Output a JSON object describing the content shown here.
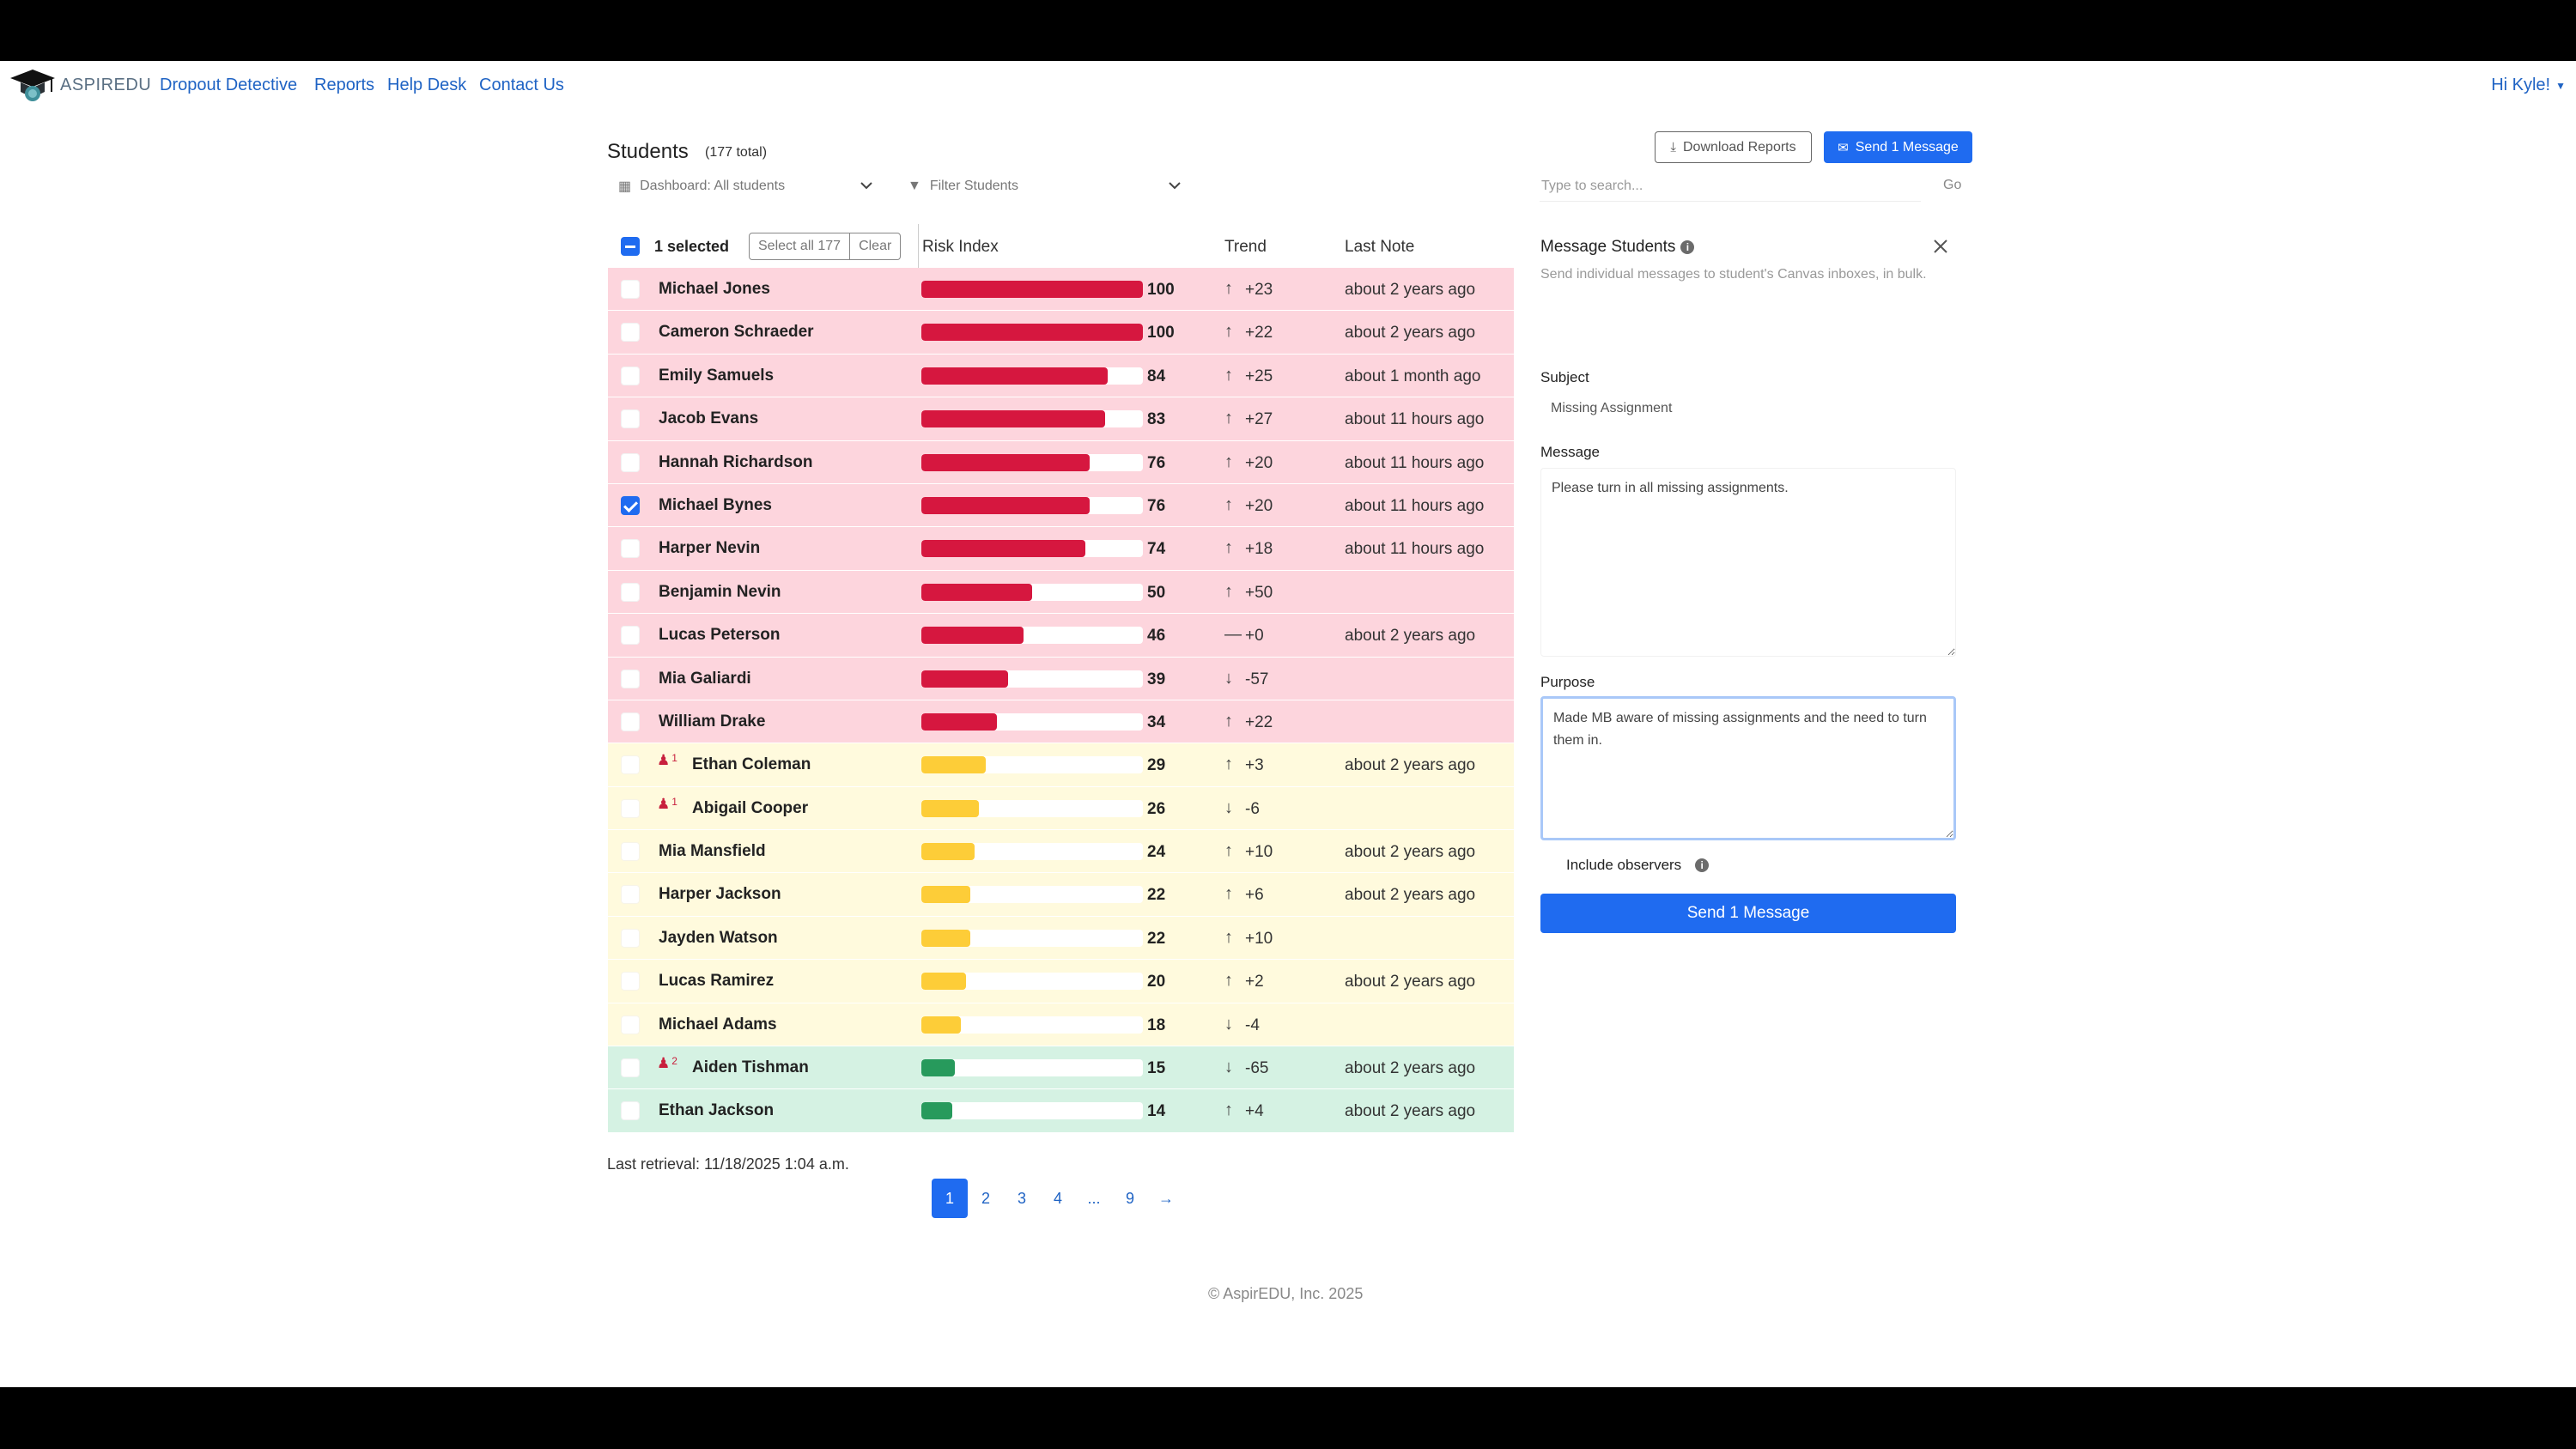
{
  "nav": {
    "brand": "ASPIREDU",
    "links": [
      "Dropout Detective",
      "Reports",
      "Help Desk",
      "Contact Us"
    ],
    "user": "Hi Kyle!"
  },
  "header": {
    "title": "Students",
    "count": "(177 total)",
    "download_label": "Download Reports",
    "send_label": "Send 1 Message"
  },
  "filters": {
    "dashboard": "Dashboard: All students",
    "filter": "Filter Students",
    "search_placeholder": "Type to search...",
    "go": "Go"
  },
  "table": {
    "selected": "1 selected",
    "select_all": "Select all 177",
    "clear": "Clear",
    "columns": [
      "Risk Index",
      "Trend",
      "Last Note"
    ],
    "rows": [
      {
        "name": "Michael Jones",
        "risk": 100,
        "trend": "+23",
        "dir": "up",
        "note": "about 2 years ago",
        "level": "red",
        "checked": false,
        "obs": ""
      },
      {
        "name": "Cameron Schraeder",
        "risk": 100,
        "trend": "+22",
        "dir": "up",
        "note": "about 2 years ago",
        "level": "red",
        "checked": false,
        "obs": ""
      },
      {
        "name": "Emily Samuels",
        "risk": 84,
        "trend": "+25",
        "dir": "up",
        "note": "about 1 month ago",
        "level": "red",
        "checked": false,
        "obs": ""
      },
      {
        "name": "Jacob Evans",
        "risk": 83,
        "trend": "+27",
        "dir": "up",
        "note": "about 11 hours ago",
        "level": "red",
        "checked": false,
        "obs": ""
      },
      {
        "name": "Hannah Richardson",
        "risk": 76,
        "trend": "+20",
        "dir": "up",
        "note": "about 11 hours ago",
        "level": "red",
        "checked": false,
        "obs": ""
      },
      {
        "name": "Michael Bynes",
        "risk": 76,
        "trend": "+20",
        "dir": "up",
        "note": "about 11 hours ago",
        "level": "red",
        "checked": true,
        "obs": ""
      },
      {
        "name": "Harper Nevin",
        "risk": 74,
        "trend": "+18",
        "dir": "up",
        "note": "about 11 hours ago",
        "level": "red",
        "checked": false,
        "obs": ""
      },
      {
        "name": "Benjamin Nevin",
        "risk": 50,
        "trend": "+50",
        "dir": "up",
        "note": "",
        "level": "red",
        "checked": false,
        "obs": ""
      },
      {
        "name": "Lucas Peterson",
        "risk": 46,
        "trend": "+0",
        "dir": "flat",
        "note": "about 2 years ago",
        "level": "red",
        "checked": false,
        "obs": ""
      },
      {
        "name": "Mia Galiardi",
        "risk": 39,
        "trend": "-57",
        "dir": "down",
        "note": "",
        "level": "red",
        "checked": false,
        "obs": ""
      },
      {
        "name": "William Drake",
        "risk": 34,
        "trend": "+22",
        "dir": "up",
        "note": "",
        "level": "red",
        "checked": false,
        "obs": ""
      },
      {
        "name": "Ethan Coleman",
        "risk": 29,
        "trend": "+3",
        "dir": "up",
        "note": "about 2 years ago",
        "level": "yellow",
        "checked": false,
        "obs": "1"
      },
      {
        "name": "Abigail Cooper",
        "risk": 26,
        "trend": "-6",
        "dir": "down",
        "note": "",
        "level": "yellow",
        "checked": false,
        "obs": "1"
      },
      {
        "name": "Mia Mansfield",
        "risk": 24,
        "trend": "+10",
        "dir": "up",
        "note": "about 2 years ago",
        "level": "yellow",
        "checked": false,
        "obs": ""
      },
      {
        "name": "Harper Jackson",
        "risk": 22,
        "trend": "+6",
        "dir": "up",
        "note": "about 2 years ago",
        "level": "yellow",
        "checked": false,
        "obs": ""
      },
      {
        "name": "Jayden Watson",
        "risk": 22,
        "trend": "+10",
        "dir": "up",
        "note": "",
        "level": "yellow",
        "checked": false,
        "obs": ""
      },
      {
        "name": "Lucas Ramirez",
        "risk": 20,
        "trend": "+2",
        "dir": "up",
        "note": "about 2 years ago",
        "level": "yellow",
        "checked": false,
        "obs": ""
      },
      {
        "name": "Michael Adams",
        "risk": 18,
        "trend": "-4",
        "dir": "down",
        "note": "",
        "level": "yellow",
        "checked": false,
        "obs": ""
      },
      {
        "name": "Aiden Tishman",
        "risk": 15,
        "trend": "-65",
        "dir": "down",
        "note": "about 2 years ago",
        "level": "green",
        "checked": false,
        "obs": "2"
      },
      {
        "name": "Ethan Jackson",
        "risk": 14,
        "trend": "+4",
        "dir": "up",
        "note": "about 2 years ago",
        "level": "green",
        "checked": false,
        "obs": ""
      }
    ]
  },
  "colors": {
    "red": "#d6173f",
    "yellow": "#fdcd38",
    "green": "#279a5c"
  },
  "last_retrieval": "Last retrieval: 11/18/2025 1:04 a.m.",
  "pagination": {
    "pages": [
      "1",
      "2",
      "3",
      "4",
      "...",
      "9",
      "→"
    ],
    "active": "1"
  },
  "footer": "© AspirEDU, Inc. 2025",
  "panel": {
    "title": "Message Students",
    "description": "Send individual messages to student's Canvas inboxes, in bulk.",
    "subject_label": "Subject",
    "subject_value": "Missing Assignment",
    "message_label": "Message",
    "message_value": "Please turn in all missing assignments.",
    "purpose_label": "Purpose",
    "purpose_value": "Made MB aware of missing assignments and the need to turn them in.",
    "observers_label": "Include observers",
    "send_label": "Send 1 Message"
  }
}
